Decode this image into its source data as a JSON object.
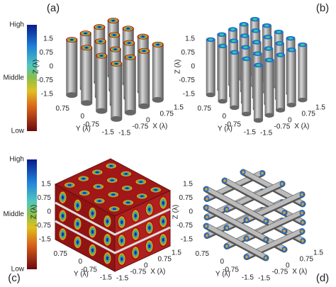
{
  "panels": [
    {
      "label": "(a)",
      "colorbar": [
        "High",
        "Middle",
        "Low"
      ],
      "z_label": "Z (λ)",
      "y_label": "Y (λ)",
      "x_label": "X (λ)",
      "z_ticks": [
        "1.5",
        "0.75",
        "0",
        "-0.75",
        "-1.5"
      ],
      "y_ticks": [
        "0.75",
        "0",
        "-0.75",
        "-1.5"
      ],
      "x_ticks": [
        "-1.5",
        "-0.75",
        "0",
        "0.75",
        "1.5"
      ]
    },
    {
      "label": "(b)",
      "z_label": "Z (λ)",
      "y_label": "Y (λ)",
      "x_label": "X (λ)",
      "z_ticks": [
        "1.5",
        "0.75",
        "0",
        "-0.75",
        "-1.5"
      ],
      "y_ticks": [
        "0.75",
        "0",
        "-0.75",
        "-1.5"
      ],
      "x_ticks": [
        "-1.5",
        "-0.75",
        "0",
        "0.75",
        "1.5"
      ]
    },
    {
      "label": "(c)",
      "colorbar": [
        "High",
        "Middle",
        "Low"
      ],
      "z_label": "Z (λ)",
      "y_label": "Y (λ)",
      "x_label": "X (λ)",
      "z_ticks": [
        "1.5",
        "0.75",
        "0",
        "-0.75",
        "-1.5"
      ],
      "y_ticks": [
        "0.75",
        "0",
        "-0.75",
        "-1.5"
      ],
      "x_ticks": [
        "-1.5",
        "-0.75",
        "0",
        "0.75",
        "1.5"
      ]
    },
    {
      "label": "(d)",
      "z_label": "Z (λ)",
      "y_label": "Y (λ)",
      "x_label": "X (λ)",
      "z_ticks": [
        "1.5",
        "0.75",
        "0",
        "-0.75",
        "-1.5"
      ],
      "y_ticks": [
        "0.75",
        "0",
        "-0.75",
        "-1.5"
      ],
      "x_ticks": [
        "-1.5",
        "-0.75",
        "0",
        "0.75",
        "1.5"
      ]
    }
  ]
}
